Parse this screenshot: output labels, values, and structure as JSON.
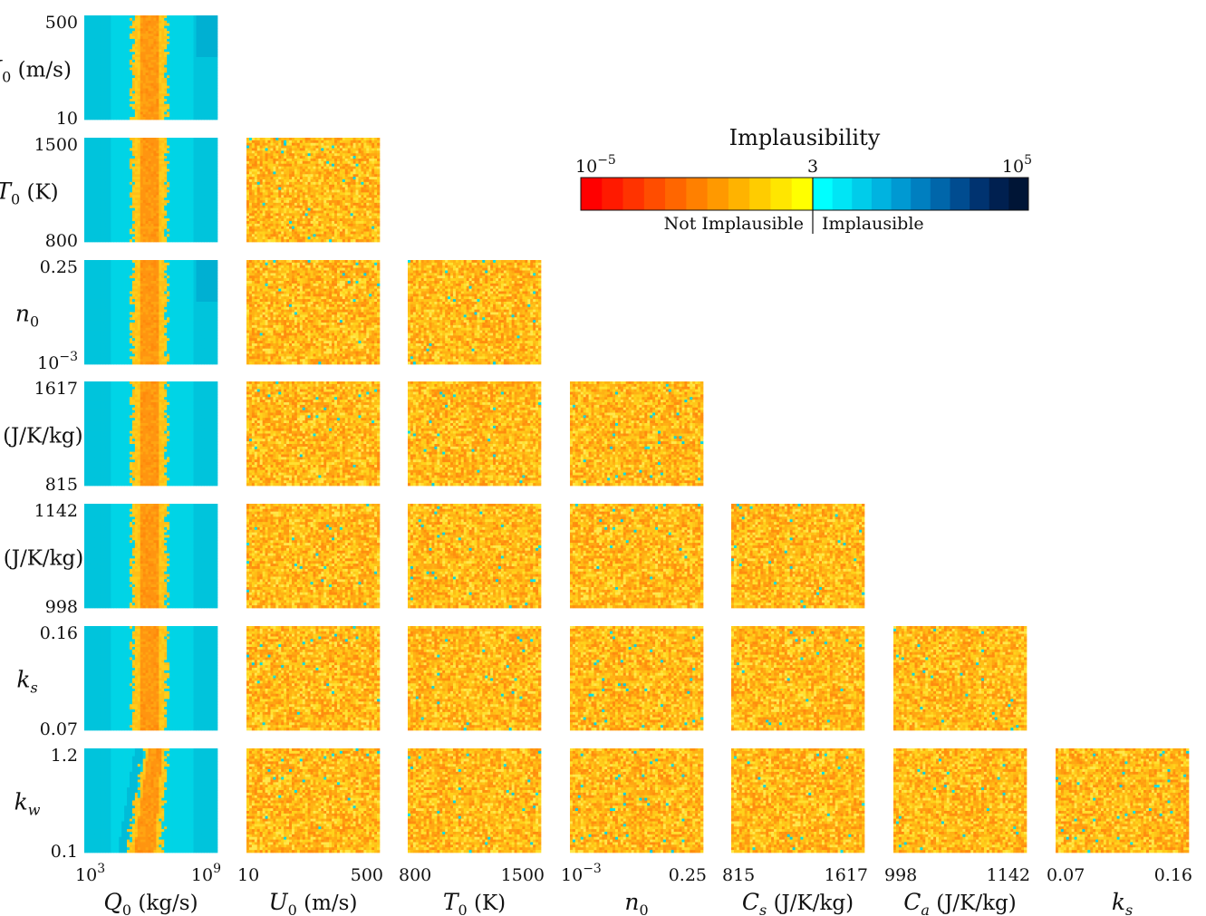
{
  "chart_data": {
    "type": "heatmap",
    "layout": "lower-triangular pairwise grid",
    "colorbar": {
      "title": "Implausibility",
      "tick_labels": {
        "min": "10",
        "min_exp": "−5",
        "mid": "3",
        "max": "10",
        "max_exp": "5"
      },
      "range": [
        "1e-5",
        "1e5"
      ],
      "threshold": 3,
      "left_label": "Not Implausible",
      "right_label": "Implausible",
      "low_colors": [
        "#ff0000",
        "#ff1a00",
        "#ff3300",
        "#ff4d00",
        "#ff6600",
        "#ff8000",
        "#ff9900",
        "#ffb300",
        "#ffcc00",
        "#ffe600",
        "#ffff00"
      ],
      "high_colors": [
        "#00ffff",
        "#00e5f5",
        "#00ccea",
        "#00b3e0",
        "#0099d2",
        "#007fc0",
        "#0066aa",
        "#004c90",
        "#003370",
        "#002050",
        "#001536"
      ]
    },
    "parameters": [
      {
        "key": "Q0",
        "sym": "Q",
        "sub": "0",
        "unit": " (kg/s)",
        "min": "10",
        "min_exp": "3",
        "max": "10",
        "max_exp": "9",
        "scale": "log"
      },
      {
        "key": "U0",
        "sym": "U",
        "sub": "0",
        "unit": " (m/s)",
        "min": "10",
        "max": "500",
        "scale": "linear"
      },
      {
        "key": "T0",
        "sym": "T",
        "sub": "0",
        "unit": " (K)",
        "min": "800",
        "max": "1500",
        "scale": "linear"
      },
      {
        "key": "n0",
        "sym": "n",
        "sub": "0",
        "unit": "",
        "min": "10",
        "min_exp": "−3",
        "max": "0.25",
        "scale": "log"
      },
      {
        "key": "Cs",
        "sym": "C",
        "sub": "s",
        "unit": " (J/K/kg)",
        "min": "815",
        "max": "1617",
        "scale": "linear"
      },
      {
        "key": "Ca",
        "sym": "C",
        "sub": "a",
        "unit": " (J/K/kg)",
        "min": "998",
        "max": "1142",
        "scale": "linear"
      },
      {
        "key": "ks",
        "sym": "k",
        "sub": "s",
        "unit": "",
        "min": "0.07",
        "max": "0.16",
        "scale": "linear"
      },
      {
        "key": "kw",
        "sym": "k",
        "sub": "w",
        "unit": "",
        "min": "0.1",
        "max": "1.2",
        "scale": "linear"
      }
    ],
    "panel_pattern": {
      "Q0_column": "not implausible band (yellow-orange) for Q0 between roughly 10^4.8 and 10^6.5 kg/s; implausible (cyan) elsewhere",
      "other_panels": "mostly not implausible (yellow-orange) with scattered implausible points"
    }
  }
}
